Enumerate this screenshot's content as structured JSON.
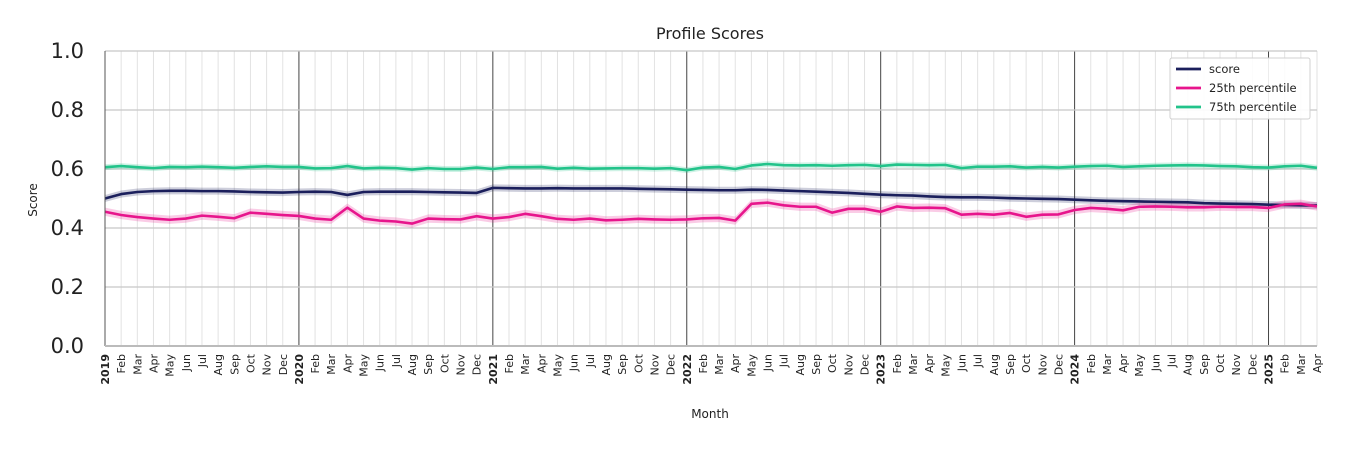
{
  "chart_data": {
    "type": "line",
    "title": "Profile Scores",
    "xlabel": "Month",
    "ylabel": "Score",
    "ylim": [
      0.0,
      1.0
    ],
    "yticks": [
      "0.0",
      "0.2",
      "0.4",
      "0.6",
      "0.8",
      "1.0"
    ],
    "grid": true,
    "legend_position": "top-right",
    "x": [
      "2019",
      "Feb",
      "Mar",
      "Apr",
      "May",
      "Jun",
      "Jul",
      "Aug",
      "Sep",
      "Oct",
      "Nov",
      "Dec",
      "2020",
      "Feb",
      "Mar",
      "Apr",
      "May",
      "Jun",
      "Jul",
      "Aug",
      "Sep",
      "Oct",
      "Nov",
      "Dec",
      "2021",
      "Feb",
      "Mar",
      "Apr",
      "May",
      "Jun",
      "Jul",
      "Aug",
      "Sep",
      "Oct",
      "Nov",
      "Dec",
      "2022",
      "Feb",
      "Mar",
      "Apr",
      "May",
      "Jun",
      "Jul",
      "Aug",
      "Sep",
      "Oct",
      "Nov",
      "Dec",
      "2023",
      "Feb",
      "Mar",
      "Apr",
      "May",
      "Jun",
      "Jul",
      "Aug",
      "Sep",
      "Oct",
      "Nov",
      "Dec",
      "2024",
      "Feb",
      "Mar",
      "Apr",
      "May",
      "Jun",
      "Jul",
      "Aug",
      "Sep",
      "Oct",
      "Nov",
      "Dec",
      "2025",
      "Feb",
      "Mar",
      "Apr"
    ],
    "series": [
      {
        "name": "score",
        "color": "#1b1f5c",
        "values": [
          0.5,
          0.515,
          0.522,
          0.525,
          0.526,
          0.526,
          0.525,
          0.525,
          0.524,
          0.522,
          0.521,
          0.52,
          0.522,
          0.523,
          0.522,
          0.512,
          0.522,
          0.523,
          0.523,
          0.523,
          0.522,
          0.521,
          0.52,
          0.519,
          0.536,
          0.535,
          0.534,
          0.534,
          0.535,
          0.534,
          0.534,
          0.534,
          0.534,
          0.533,
          0.532,
          0.531,
          0.53,
          0.529,
          0.528,
          0.528,
          0.53,
          0.529,
          0.527,
          0.525,
          0.523,
          0.521,
          0.519,
          0.516,
          0.513,
          0.511,
          0.51,
          0.507,
          0.505,
          0.504,
          0.504,
          0.503,
          0.501,
          0.5,
          0.499,
          0.498,
          0.496,
          0.494,
          0.492,
          0.491,
          0.49,
          0.489,
          0.488,
          0.487,
          0.484,
          0.483,
          0.482,
          0.481,
          0.479,
          0.478,
          0.477,
          0.476
        ],
        "band": 0.012
      },
      {
        "name": "25th percentile",
        "color": "#e7158c",
        "values": [
          0.455,
          0.444,
          0.437,
          0.432,
          0.428,
          0.432,
          0.442,
          0.438,
          0.433,
          0.452,
          0.448,
          0.444,
          0.441,
          0.432,
          0.428,
          0.469,
          0.432,
          0.425,
          0.422,
          0.415,
          0.432,
          0.43,
          0.429,
          0.44,
          0.432,
          0.437,
          0.448,
          0.44,
          0.431,
          0.428,
          0.432,
          0.426,
          0.428,
          0.431,
          0.429,
          0.428,
          0.429,
          0.433,
          0.434,
          0.425,
          0.482,
          0.486,
          0.477,
          0.472,
          0.472,
          0.452,
          0.465,
          0.465,
          0.455,
          0.473,
          0.468,
          0.469,
          0.467,
          0.445,
          0.448,
          0.445,
          0.451,
          0.438,
          0.445,
          0.446,
          0.461,
          0.468,
          0.465,
          0.46,
          0.472,
          0.473,
          0.472,
          0.47,
          0.47,
          0.472,
          0.471,
          0.471,
          0.468,
          0.48,
          0.482,
          0.473
        ],
        "band": 0.014
      },
      {
        "name": "75th percentile",
        "color": "#22c38a",
        "values": [
          0.606,
          0.61,
          0.606,
          0.603,
          0.607,
          0.606,
          0.608,
          0.606,
          0.604,
          0.607,
          0.609,
          0.607,
          0.607,
          0.602,
          0.603,
          0.61,
          0.602,
          0.604,
          0.603,
          0.598,
          0.603,
          0.6,
          0.6,
          0.605,
          0.6,
          0.606,
          0.606,
          0.607,
          0.601,
          0.604,
          0.601,
          0.602,
          0.603,
          0.603,
          0.601,
          0.603,
          0.596,
          0.605,
          0.607,
          0.6,
          0.612,
          0.617,
          0.613,
          0.612,
          0.613,
          0.611,
          0.613,
          0.614,
          0.61,
          0.615,
          0.614,
          0.613,
          0.614,
          0.603,
          0.608,
          0.608,
          0.609,
          0.605,
          0.607,
          0.605,
          0.608,
          0.61,
          0.611,
          0.607,
          0.609,
          0.611,
          0.612,
          0.613,
          0.612,
          0.61,
          0.609,
          0.606,
          0.605,
          0.609,
          0.611,
          0.604
        ],
        "band": 0.01
      }
    ]
  }
}
